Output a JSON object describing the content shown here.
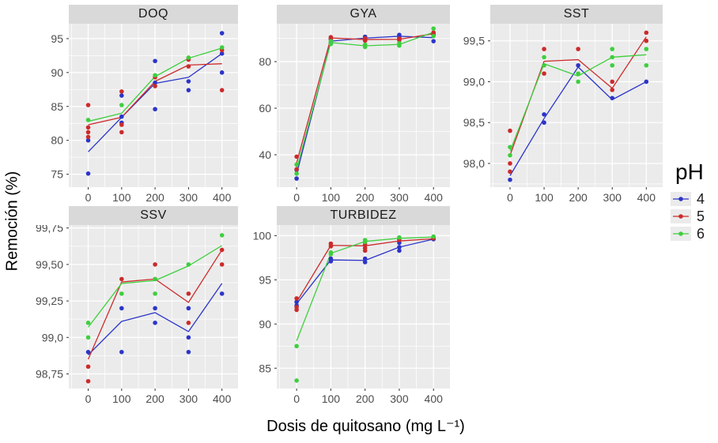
{
  "figure": {
    "x_axis_title": "Dosis de quitosano (mg L⁻¹)",
    "y_axis_title": "Remoción (%)",
    "background": "#ffffff",
    "panel_background": "#ebebeb",
    "strip_background": "#d9d9d9",
    "grid_color": "#ffffff",
    "tick_color": "#333333",
    "tick_text_color": "#4d4d4d"
  },
  "legend": {
    "title": "pH",
    "position": "right",
    "key_background": "#ebebeb",
    "items": [
      {
        "label": "4",
        "color": "#2c35c8"
      },
      {
        "label": "5",
        "color": "#cc2b2b"
      },
      {
        "label": "6",
        "color": "#3ecf3e"
      }
    ]
  },
  "chart_data": [
    {
      "type": "scatter",
      "facet": "DOQ",
      "xlim": [
        -58,
        448
      ],
      "ylim": [
        73.1,
        97.2
      ],
      "x_ticks": [
        0,
        100,
        200,
        300,
        400
      ],
      "x_tick_labels": [
        "0",
        "100",
        "200",
        "300",
        "400"
      ],
      "x_minor": [
        -50,
        50,
        150,
        250,
        350
      ],
      "y_ticks": [
        75,
        80,
        85,
        90,
        95
      ],
      "y_tick_labels": [
        "75",
        "80",
        "85",
        "90",
        "95"
      ],
      "y_minor": [
        77.5,
        82.5,
        87.5,
        92.5
      ],
      "line_x": [
        0,
        100,
        200,
        300,
        400
      ],
      "series": [
        {
          "name": "pH 4",
          "color": "#2c35c8",
          "points": [
            [
              0,
              80.0
            ],
            [
              0,
              75.1
            ],
            [
              100,
              86.6
            ],
            [
              100,
              83.5
            ],
            [
              100,
              82.6
            ],
            [
              200,
              91.7
            ],
            [
              200,
              88.5
            ],
            [
              200,
              84.6
            ],
            [
              300,
              88.7
            ],
            [
              300,
              87.4
            ],
            [
              400,
              95.8
            ],
            [
              400,
              92.8
            ],
            [
              400,
              90.0
            ]
          ],
          "line_y": [
            78.3,
            83.4,
            88.4,
            89.3,
            92.8
          ]
        },
        {
          "name": "pH 5",
          "color": "#cc2b2b",
          "points": [
            [
              0,
              85.2
            ],
            [
              0,
              81.9
            ],
            [
              0,
              81.2
            ],
            [
              0,
              80.5
            ],
            [
              100,
              87.2
            ],
            [
              100,
              82.3
            ],
            [
              100,
              81.2
            ],
            [
              200,
              89.3
            ],
            [
              200,
              88.0
            ],
            [
              300,
              91.9
            ],
            [
              300,
              90.9
            ],
            [
              400,
              93.3
            ],
            [
              400,
              87.4
            ]
          ],
          "line_y": [
            82.3,
            83.4,
            88.7,
            91.1,
            91.3
          ]
        },
        {
          "name": "pH 6",
          "color": "#3ecf3e",
          "points": [
            [
              0,
              83.0
            ],
            [
              100,
              85.2
            ],
            [
              200,
              89.6
            ],
            [
              300,
              92.2
            ],
            [
              400,
              93.7
            ]
          ],
          "line_y": [
            82.8,
            84.0,
            89.4,
            92.1,
            93.6
          ]
        }
      ]
    },
    {
      "type": "scatter",
      "facet": "GYA",
      "xlim": [
        -58,
        448
      ],
      "ylim": [
        26.1,
        96.3
      ],
      "x_ticks": [
        0,
        100,
        200,
        300,
        400
      ],
      "x_tick_labels": [
        "0",
        "100",
        "200",
        "300",
        "400"
      ],
      "x_minor": [
        -50,
        50,
        150,
        250,
        350
      ],
      "y_ticks": [
        40,
        60,
        80
      ],
      "y_tick_labels": [
        "40",
        "60",
        "80"
      ],
      "y_minor": [
        30,
        50,
        70,
        90
      ],
      "line_x": [
        0,
        100,
        200,
        300,
        400
      ],
      "series": [
        {
          "name": "pH 4",
          "color": "#2c35c8",
          "points": [
            [
              0,
              33.5
            ],
            [
              0,
              29.8
            ],
            [
              100,
              89.5
            ],
            [
              100,
              88.0
            ],
            [
              200,
              90.7
            ],
            [
              200,
              89.4
            ],
            [
              300,
              91.5
            ],
            [
              300,
              90.3
            ],
            [
              400,
              91.8
            ],
            [
              400,
              88.8
            ]
          ],
          "line_y": [
            31.7,
            88.8,
            90.1,
            90.9,
            90.3
          ]
        },
        {
          "name": "pH 5",
          "color": "#cc2b2b",
          "points": [
            [
              0,
              39.2
            ],
            [
              0,
              33.8
            ],
            [
              100,
              90.5
            ],
            [
              100,
              89.8
            ],
            [
              200,
              90.0
            ],
            [
              200,
              89.0
            ],
            [
              300,
              89.9
            ],
            [
              300,
              89.2
            ],
            [
              400,
              92.5
            ],
            [
              400,
              91.5
            ]
          ],
          "line_y": [
            36.5,
            90.2,
            89.5,
            89.6,
            92.0
          ]
        },
        {
          "name": "pH 6",
          "color": "#3ecf3e",
          "points": [
            [
              0,
              35.8
            ],
            [
              0,
              31.9
            ],
            [
              100,
              88.8
            ],
            [
              100,
              87.6
            ],
            [
              200,
              87.3
            ],
            [
              200,
              86.3
            ],
            [
              300,
              87.9
            ],
            [
              300,
              86.9
            ],
            [
              400,
              94.2
            ],
            [
              400,
              91.0
            ]
          ],
          "line_y": [
            33.9,
            88.2,
            86.8,
            87.4,
            92.6
          ]
        }
      ]
    },
    {
      "type": "scatter",
      "facet": "SST",
      "xlim": [
        -58,
        448
      ],
      "ylim": [
        97.71,
        99.71
      ],
      "x_ticks": [
        0,
        100,
        200,
        300,
        400
      ],
      "x_tick_labels": [
        "0",
        "100",
        "200",
        "300",
        "400"
      ],
      "x_minor": [
        -50,
        50,
        150,
        250,
        350
      ],
      "y_ticks": [
        98.0,
        98.5,
        99.0,
        99.5
      ],
      "y_tick_labels": [
        "98,0",
        "98,5",
        "99,0",
        "99,5"
      ],
      "y_minor": [
        97.75,
        98.25,
        98.75,
        99.25
      ],
      "line_x": [
        0,
        100,
        200,
        300,
        400
      ],
      "series": [
        {
          "name": "pH 4",
          "color": "#2c35c8",
          "points": [
            [
              0,
              97.8
            ],
            [
              100,
              98.6
            ],
            [
              100,
              98.5
            ],
            [
              200,
              99.2
            ],
            [
              300,
              98.8
            ],
            [
              400,
              99.0
            ]
          ],
          "line_y": [
            97.85,
            98.55,
            99.18,
            98.78,
            99.0
          ]
        },
        {
          "name": "pH 5",
          "color": "#cc2b2b",
          "points": [
            [
              0,
              98.4
            ],
            [
              0,
              98.0
            ],
            [
              0,
              97.9
            ],
            [
              100,
              99.4
            ],
            [
              100,
              99.1
            ],
            [
              200,
              99.4
            ],
            [
              300,
              99.0
            ],
            [
              300,
              98.9
            ],
            [
              400,
              99.6
            ],
            [
              400,
              99.5
            ]
          ],
          "line_y": [
            98.1,
            99.25,
            99.27,
            98.92,
            99.55
          ]
        },
        {
          "name": "pH 6",
          "color": "#3ecf3e",
          "points": [
            [
              0,
              98.2
            ],
            [
              0,
              98.1
            ],
            [
              100,
              99.3
            ],
            [
              100,
              99.2
            ],
            [
              200,
              99.1
            ],
            [
              200,
              99.0
            ],
            [
              300,
              99.4
            ],
            [
              300,
              99.3
            ],
            [
              300,
              99.2
            ],
            [
              400,
              99.4
            ],
            [
              400,
              99.2
            ]
          ],
          "line_y": [
            98.15,
            99.22,
            99.07,
            99.3,
            99.33
          ]
        }
      ]
    },
    {
      "type": "scatter",
      "facet": "SSV",
      "xlim": [
        -58,
        448
      ],
      "ylim": [
        98.65,
        99.77
      ],
      "x_ticks": [
        0,
        100,
        200,
        300,
        400
      ],
      "x_tick_labels": [
        "0",
        "100",
        "200",
        "300",
        "400"
      ],
      "x_minor": [
        -50,
        50,
        150,
        250,
        350
      ],
      "y_ticks": [
        98.75,
        99.0,
        99.25,
        99.5,
        99.75
      ],
      "y_tick_labels": [
        "98,75",
        "99,0",
        "99,25",
        "99,50",
        "99,75"
      ],
      "y_minor": [
        98.875,
        99.125,
        99.375,
        99.625
      ],
      "line_x": [
        0,
        100,
        200,
        300,
        400
      ],
      "series": [
        {
          "name": "pH 4",
          "color": "#2c35c8",
          "points": [
            [
              0,
              98.9
            ],
            [
              100,
              99.2
            ],
            [
              100,
              98.9
            ],
            [
              200,
              99.2
            ],
            [
              200,
              99.1
            ],
            [
              300,
              99.2
            ],
            [
              300,
              99.0
            ],
            [
              300,
              98.9
            ],
            [
              400,
              99.3
            ]
          ],
          "line_y": [
            98.88,
            99.11,
            99.17,
            99.04,
            99.37
          ]
        },
        {
          "name": "pH 5",
          "color": "#cc2b2b",
          "points": [
            [
              0,
              98.8
            ],
            [
              0,
              98.7
            ],
            [
              100,
              99.4
            ],
            [
              200,
              99.5
            ],
            [
              200,
              99.4
            ],
            [
              300,
              99.3
            ],
            [
              300,
              99.1
            ],
            [
              400,
              99.6
            ],
            [
              400,
              99.5
            ]
          ],
          "line_y": [
            98.85,
            99.38,
            99.4,
            99.24,
            99.6
          ]
        },
        {
          "name": "pH 6",
          "color": "#3ecf3e",
          "points": [
            [
              0,
              99.1
            ],
            [
              0,
              99.0
            ],
            [
              100,
              99.3
            ],
            [
              200,
              99.4
            ],
            [
              200,
              99.3
            ],
            [
              300,
              99.5
            ],
            [
              400,
              99.7
            ]
          ],
          "line_y": [
            99.07,
            99.37,
            99.39,
            99.49,
            99.63
          ]
        }
      ]
    },
    {
      "type": "scatter",
      "facet": "TURBIDEZ",
      "xlim": [
        -58,
        448
      ],
      "ylim": [
        82.7,
        101.2
      ],
      "x_ticks": [
        0,
        100,
        200,
        300,
        400
      ],
      "x_tick_labels": [
        "0",
        "100",
        "200",
        "300",
        "400"
      ],
      "x_minor": [
        -50,
        50,
        150,
        250,
        350
      ],
      "y_ticks": [
        85,
        90,
        95,
        100
      ],
      "y_tick_labels": [
        "85",
        "90",
        "95",
        "100"
      ],
      "y_minor": [
        87.5,
        92.5,
        97.5
      ],
      "line_x": [
        0,
        100,
        200,
        300,
        400
      ],
      "series": [
        {
          "name": "pH 4",
          "color": "#2c35c8",
          "points": [
            [
              0,
              92.5
            ],
            [
              0,
              92.1
            ],
            [
              100,
              97.4
            ],
            [
              100,
              97.1
            ],
            [
              200,
              97.4
            ],
            [
              200,
              97.0
            ],
            [
              300,
              99.2
            ],
            [
              300,
              98.7
            ],
            [
              300,
              98.3
            ],
            [
              400,
              99.6
            ]
          ],
          "line_y": [
            92.3,
            97.25,
            97.2,
            98.7,
            99.6
          ]
        },
        {
          "name": "pH 5",
          "color": "#cc2b2b",
          "points": [
            [
              0,
              92.9
            ],
            [
              0,
              91.9
            ],
            [
              0,
              91.6
            ],
            [
              100,
              99.1
            ],
            [
              100,
              98.8
            ],
            [
              200,
              99.0
            ],
            [
              200,
              98.6
            ],
            [
              200,
              98.3
            ],
            [
              300,
              99.5
            ],
            [
              400,
              99.7
            ]
          ],
          "line_y": [
            92.5,
            98.9,
            98.85,
            99.4,
            99.65
          ]
        },
        {
          "name": "pH 6",
          "color": "#3ecf3e",
          "points": [
            [
              0,
              87.5
            ],
            [
              0,
              83.6
            ],
            [
              100,
              98.1
            ],
            [
              100,
              97.9
            ],
            [
              200,
              99.5
            ],
            [
              200,
              99.3
            ],
            [
              300,
              99.8
            ],
            [
              400,
              99.9
            ]
          ],
          "line_y": [
            88.1,
            98.0,
            99.35,
            99.7,
            99.85
          ]
        }
      ]
    }
  ]
}
